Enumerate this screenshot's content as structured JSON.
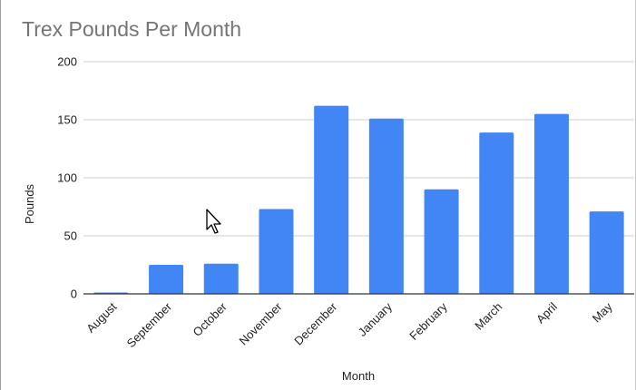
{
  "chart_data": {
    "type": "bar",
    "title": "Trex Pounds Per Month",
    "xlabel": "Month",
    "ylabel": "Pounds",
    "categories": [
      "August",
      "September",
      "October",
      "November",
      "December",
      "January",
      "February",
      "March",
      "April",
      "May"
    ],
    "values": [
      1,
      25,
      26,
      73,
      162,
      151,
      90,
      139,
      155,
      71
    ],
    "ylim": [
      0,
      200
    ],
    "yticks": [
      "0",
      "50",
      "100",
      "150",
      "200"
    ],
    "bar_color": "#4285f4",
    "gridlines": true,
    "legend": "none"
  },
  "ui": {
    "cursor_icon": "arrow-cursor-icon"
  }
}
